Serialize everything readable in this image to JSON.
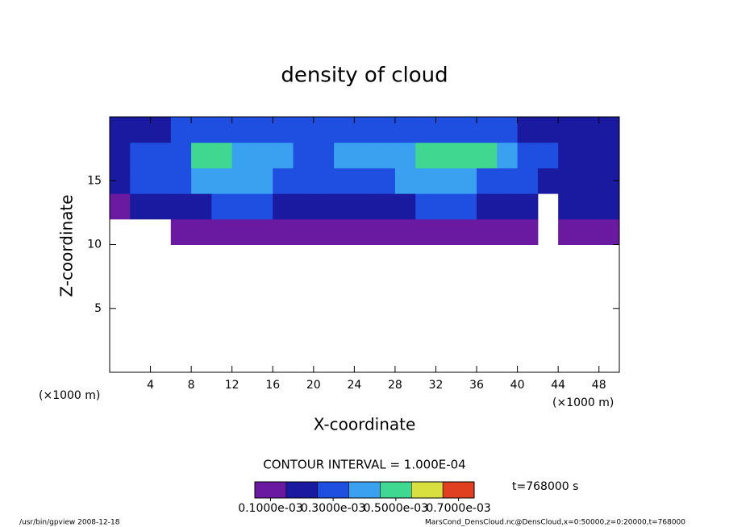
{
  "chart_data": {
    "type": "heatmap",
    "title": "density of cloud",
    "x_label": "X-coordinate",
    "y_label": "Z-coordinate",
    "x_unit_left": "(×1000 m)",
    "x_unit_right": "(×1000 m)",
    "xlim": [
      0,
      50
    ],
    "ylim": [
      0,
      20
    ],
    "xticks": [
      4,
      8,
      12,
      16,
      20,
      24,
      28,
      32,
      36,
      40,
      44,
      48
    ],
    "yticks": [
      5,
      10,
      15
    ],
    "xbins": [
      0,
      2,
      4,
      6,
      8,
      10,
      12,
      14,
      16,
      18,
      20,
      22,
      24,
      26,
      28,
      30,
      32,
      34,
      36,
      38,
      40,
      42,
      44,
      46,
      48,
      50
    ],
    "zbins": [
      10,
      12,
      14,
      16,
      18,
      20
    ],
    "values": [
      [
        null,
        null,
        null,
        0.0001,
        0.0001,
        0.0001,
        0.0001,
        0.0001,
        0.0001,
        0.0001,
        0.0001,
        0.0001,
        0.0001,
        0.0001,
        0.0001,
        0.0001,
        0.0001,
        0.0001,
        0.0001,
        0.0001,
        0.0001,
        null,
        0.0001,
        0.0001,
        0.0001
      ],
      [
        0.0001,
        0.0002,
        0.0002,
        0.0002,
        0.0002,
        0.0003,
        0.0003,
        0.0003,
        0.0002,
        0.0002,
        0.0002,
        0.0002,
        0.0002,
        0.0002,
        0.0002,
        0.0003,
        0.0003,
        0.0003,
        0.0002,
        0.0002,
        0.0002,
        null,
        0.0002,
        0.0002,
        0.0002
      ],
      [
        0.0002,
        0.0003,
        0.0003,
        0.0003,
        0.0004,
        0.0004,
        0.0004,
        0.0004,
        0.0003,
        0.0003,
        0.0003,
        0.0003,
        0.0003,
        0.0003,
        0.0004,
        0.0004,
        0.0004,
        0.0004,
        0.0003,
        0.0003,
        0.0003,
        0.0002,
        0.0002,
        0.0002,
        0.0002
      ],
      [
        0.0002,
        0.0003,
        0.0003,
        0.0003,
        0.0005,
        0.0005,
        0.0004,
        0.0004,
        0.0004,
        0.0003,
        0.0003,
        0.0004,
        0.0004,
        0.0004,
        0.0004,
        0.0005,
        0.0005,
        0.0005,
        0.0005,
        0.0004,
        0.0003,
        0.0003,
        0.0002,
        0.0002,
        0.0002
      ],
      [
        0.0002,
        0.0002,
        0.0002,
        0.0003,
        0.0003,
        0.0003,
        0.0003,
        0.0003,
        0.0003,
        0.0003,
        0.0003,
        0.0003,
        0.0003,
        0.0003,
        0.0003,
        0.0003,
        0.0003,
        0.0003,
        0.0003,
        0.0003,
        0.0002,
        0.0002,
        0.0002,
        0.0002,
        0.0002
      ]
    ],
    "colorbar": {
      "levels": [
        0.0001,
        0.0002,
        0.0003,
        0.0004,
        0.0005,
        0.0006,
        0.0007
      ],
      "colors": [
        "#6a1aa0",
        "#1a1aa0",
        "#1f4fe0",
        "#3aa0f0",
        "#40d890",
        "#d8e040",
        "#e04020"
      ],
      "ticks": [
        {
          "value": 0.0001,
          "label": "0.1000e-03"
        },
        {
          "value": 0.0003,
          "label": "0.3000e-03"
        },
        {
          "value": 0.0005,
          "label": "0.5000e-03"
        },
        {
          "value": 0.0007,
          "label": "0.7000e-03"
        }
      ]
    },
    "contour_interval": "CONTOUR INTERVAL = 1.000E-04",
    "time": "t=768000 s",
    "footer_left": "/usr/bin/gpview  2008-12-18",
    "footer_right": "MarsCond_DensCloud.nc@DensCloud,x=0:50000,z=0:20000,t=768000"
  }
}
